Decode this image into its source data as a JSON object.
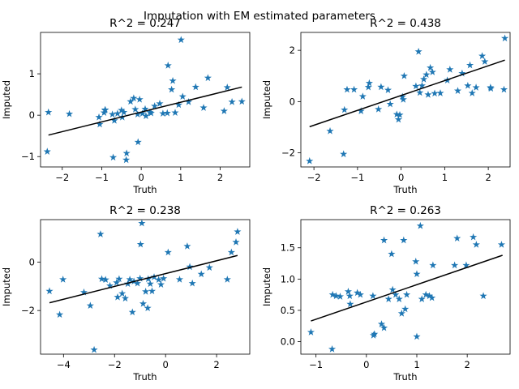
{
  "figure": {
    "suptitle": "Imputation with EM estimated parameters"
  },
  "colors": {
    "marker": "#1f77b4",
    "fit_line": "#000000"
  },
  "chart_data": [
    {
      "type": "scatter",
      "marker": "star",
      "title": "R^2 = 0.247",
      "xlabel": "Truth",
      "ylabel": "Imputed",
      "xlim": [
        -2.55,
        2.75
      ],
      "ylim": [
        -1.25,
        2.0
      ],
      "xticks": [
        -2,
        -1,
        0,
        1,
        2
      ],
      "xtick_labels": [
        "−2",
        "−1",
        "0",
        "1",
        "2"
      ],
      "yticks": [
        -1,
        0,
        1
      ],
      "ytick_labels": [
        "−1",
        "0",
        "1"
      ],
      "fit_line": {
        "x": [
          -2.35,
          2.55
        ],
        "y": [
          -0.48,
          0.68
        ]
      },
      "points": [
        [
          -2.35,
          0.07
        ],
        [
          -2.38,
          -0.88
        ],
        [
          -1.82,
          0.03
        ],
        [
          -1.07,
          -0.05
        ],
        [
          -0.94,
          0.06
        ],
        [
          -0.91,
          0.13
        ],
        [
          -1.05,
          -0.22
        ],
        [
          -0.92,
          0.12
        ],
        [
          -0.73,
          0.02
        ],
        [
          -0.71,
          -1.02
        ],
        [
          -0.68,
          -0.13
        ],
        [
          -0.6,
          0.04
        ],
        [
          -0.44,
          0.07
        ],
        [
          -0.5,
          0.12
        ],
        [
          -0.48,
          -0.05
        ],
        [
          -0.37,
          -0.92
        ],
        [
          -0.38,
          -1.08
        ],
        [
          -0.27,
          0.33
        ],
        [
          -0.19,
          0.41
        ],
        [
          -0.15,
          0.14
        ],
        [
          -0.08,
          -0.65
        ],
        [
          -0.09,
          0.02
        ],
        [
          -0.04,
          0.38
        ],
        [
          0.03,
          0.04
        ],
        [
          0.1,
          0.15
        ],
        [
          0.12,
          -0.02
        ],
        [
          0.22,
          0.07
        ],
        [
          0.25,
          0.05
        ],
        [
          0.34,
          0.22
        ],
        [
          0.47,
          0.28
        ],
        [
          0.55,
          0.04
        ],
        [
          0.66,
          0.05
        ],
        [
          0.68,
          1.2
        ],
        [
          0.77,
          0.62
        ],
        [
          0.8,
          0.83
        ],
        [
          0.86,
          0.06
        ],
        [
          0.95,
          0.25
        ],
        [
          1.01,
          1.82
        ],
        [
          1.05,
          0.45
        ],
        [
          1.2,
          0.32
        ],
        [
          1.38,
          0.68
        ],
        [
          1.58,
          0.18
        ],
        [
          1.69,
          0.9
        ],
        [
          2.1,
          0.1
        ],
        [
          2.18,
          0.67
        ],
        [
          2.3,
          0.32
        ],
        [
          2.55,
          0.33
        ]
      ]
    },
    {
      "type": "scatter",
      "marker": "star",
      "title": "R^2 = 0.438",
      "xlabel": "Truth",
      "ylabel": "Imputed",
      "xlim": [
        -2.3,
        2.5
      ],
      "ylim": [
        -2.55,
        2.7
      ],
      "xticks": [
        -2,
        -1,
        0,
        1,
        2
      ],
      "xtick_labels": [
        "−2",
        "−1",
        "0",
        "1",
        "2"
      ],
      "yticks": [
        -2,
        0,
        2
      ],
      "ytick_labels": [
        "−2",
        "0",
        "2"
      ],
      "fit_line": {
        "x": [
          -2.1,
          2.38
        ],
        "y": [
          -0.98,
          1.62
        ]
      },
      "points": [
        [
          -2.1,
          -2.32
        ],
        [
          -1.63,
          -1.15
        ],
        [
          -1.32,
          -2.05
        ],
        [
          -1.3,
          -0.32
        ],
        [
          -1.24,
          0.47
        ],
        [
          -1.08,
          0.47
        ],
        [
          -0.92,
          -0.37
        ],
        [
          -0.88,
          0.2
        ],
        [
          -0.73,
          0.72
        ],
        [
          -0.75,
          0.56
        ],
        [
          -0.52,
          -0.3
        ],
        [
          -0.46,
          0.57
        ],
        [
          -0.3,
          0.45
        ],
        [
          -0.25,
          -0.1
        ],
        [
          -0.1,
          -0.5
        ],
        [
          -0.06,
          -0.7
        ],
        [
          -0.03,
          -0.52
        ],
        [
          0.03,
          0.19
        ],
        [
          0.05,
          0.08
        ],
        [
          0.07,
          1.0
        ],
        [
          0.34,
          0.6
        ],
        [
          0.4,
          1.95
        ],
        [
          0.43,
          0.35
        ],
        [
          0.48,
          0.62
        ],
        [
          0.52,
          0.87
        ],
        [
          0.58,
          1.05
        ],
        [
          0.62,
          0.27
        ],
        [
          0.67,
          1.32
        ],
        [
          0.72,
          1.15
        ],
        [
          0.77,
          0.32
        ],
        [
          0.9,
          0.33
        ],
        [
          1.06,
          0.83
        ],
        [
          1.12,
          1.25
        ],
        [
          1.3,
          0.42
        ],
        [
          1.4,
          1.1
        ],
        [
          1.53,
          0.62
        ],
        [
          1.58,
          1.42
        ],
        [
          1.63,
          0.33
        ],
        [
          1.72,
          0.55
        ],
        [
          1.86,
          1.78
        ],
        [
          1.92,
          1.56
        ],
        [
          2.05,
          0.55
        ],
        [
          2.06,
          0.51
        ],
        [
          2.36,
          0.47
        ],
        [
          2.38,
          2.47
        ]
      ]
    },
    {
      "type": "scatter",
      "marker": "star",
      "title": "R^2 = 0.238",
      "xlabel": "Truth",
      "ylabel": "Imputed",
      "xlim": [
        -4.9,
        3.3
      ],
      "ylim": [
        -3.8,
        1.75
      ],
      "xticks": [
        -4,
        -2,
        0,
        2
      ],
      "xtick_labels": [
        "−4",
        "−2",
        "0",
        "2"
      ],
      "yticks": [
        -2,
        0
      ],
      "ytick_labels": [
        "−2",
        "0"
      ],
      "fit_line": {
        "x": [
          -4.55,
          2.82
        ],
        "y": [
          -1.68,
          0.27
        ]
      },
      "points": [
        [
          -4.55,
          -1.2
        ],
        [
          -4.15,
          -2.17
        ],
        [
          -4.02,
          -0.72
        ],
        [
          -3.2,
          -1.25
        ],
        [
          -2.95,
          -1.8
        ],
        [
          -2.8,
          -3.62
        ],
        [
          -2.55,
          1.15
        ],
        [
          -2.5,
          -0.7
        ],
        [
          -2.35,
          -0.73
        ],
        [
          -2.18,
          -0.98
        ],
        [
          -1.92,
          -0.85
        ],
        [
          -1.88,
          -1.45
        ],
        [
          -1.82,
          -0.7
        ],
        [
          -1.7,
          -1.3
        ],
        [
          -1.58,
          -1.5
        ],
        [
          -1.48,
          -0.9
        ],
        [
          -1.4,
          -0.72
        ],
        [
          -1.3,
          -2.07
        ],
        [
          -1.24,
          -0.8
        ],
        [
          -1.1,
          -0.88
        ],
        [
          -1.0,
          -0.68
        ],
        [
          -0.98,
          0.73
        ],
        [
          -0.93,
          1.6
        ],
        [
          -0.88,
          -1.72
        ],
        [
          -0.78,
          -1.22
        ],
        [
          -0.7,
          -1.9
        ],
        [
          -0.68,
          -0.7
        ],
        [
          -0.6,
          -0.9
        ],
        [
          -0.53,
          -1.2
        ],
        [
          -0.45,
          -0.62
        ],
        [
          -0.27,
          -0.73
        ],
        [
          -0.18,
          -0.93
        ],
        [
          -0.08,
          -0.68
        ],
        [
          0.1,
          0.4
        ],
        [
          0.55,
          -0.72
        ],
        [
          0.95,
          -0.2
        ],
        [
          0.85,
          0.65
        ],
        [
          1.05,
          -0.88
        ],
        [
          1.4,
          -0.5
        ],
        [
          1.72,
          -0.23
        ],
        [
          2.42,
          -0.72
        ],
        [
          2.58,
          0.4
        ],
        [
          2.76,
          0.82
        ],
        [
          2.82,
          1.25
        ]
      ]
    },
    {
      "type": "scatter",
      "marker": "star",
      "title": "R^2 = 0.263",
      "xlabel": "Truth",
      "ylabel": "Imputed",
      "xlim": [
        -1.3,
        2.85
      ],
      "ylim": [
        -0.2,
        1.95
      ],
      "xticks": [
        -1,
        0,
        1,
        2
      ],
      "xtick_labels": [
        "−1",
        "0",
        "1",
        "2"
      ],
      "yticks": [
        0.0,
        0.5,
        1.0,
        1.5
      ],
      "ytick_labels": [
        "0.0",
        "0.5",
        "1.0",
        "1.5"
      ],
      "fit_line": {
        "x": [
          -1.1,
          2.7
        ],
        "y": [
          0.33,
          1.38
        ]
      },
      "points": [
        [
          -1.1,
          0.15
        ],
        [
          -0.68,
          -0.12
        ],
        [
          -0.67,
          0.75
        ],
        [
          -0.6,
          0.73
        ],
        [
          -0.52,
          0.72
        ],
        [
          -0.36,
          0.8
        ],
        [
          -0.33,
          0.73
        ],
        [
          -0.32,
          0.6
        ],
        [
          -0.18,
          0.78
        ],
        [
          -0.12,
          0.75
        ],
        [
          0.13,
          0.73
        ],
        [
          0.14,
          0.1
        ],
        [
          0.16,
          0.12
        ],
        [
          0.3,
          0.28
        ],
        [
          0.35,
          1.62
        ],
        [
          0.35,
          0.22
        ],
        [
          0.44,
          0.68
        ],
        [
          0.5,
          1.4
        ],
        [
          0.52,
          0.83
        ],
        [
          0.58,
          0.75
        ],
        [
          0.65,
          0.68
        ],
        [
          0.7,
          0.45
        ],
        [
          0.74,
          1.62
        ],
        [
          0.77,
          0.52
        ],
        [
          0.8,
          0.75
        ],
        [
          0.98,
          1.28
        ],
        [
          1.0,
          1.08
        ],
        [
          1.0,
          0.08
        ],
        [
          1.07,
          1.85
        ],
        [
          1.1,
          0.68
        ],
        [
          1.18,
          0.75
        ],
        [
          1.25,
          0.73
        ],
        [
          1.32,
          1.22
        ],
        [
          1.3,
          0.7
        ],
        [
          1.75,
          1.22
        ],
        [
          1.8,
          1.65
        ],
        [
          1.98,
          1.22
        ],
        [
          2.12,
          1.67
        ],
        [
          2.18,
          1.55
        ],
        [
          2.32,
          0.73
        ],
        [
          2.68,
          1.55
        ]
      ]
    }
  ]
}
